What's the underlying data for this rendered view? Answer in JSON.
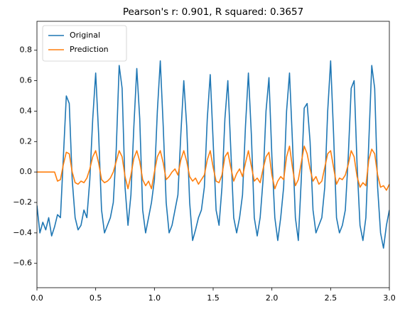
{
  "chart_data": {
    "type": "line",
    "title": "Pearson's r: 0.901, R squared: 0.3657",
    "x": [
      0,
      0.025,
      0.05,
      0.075,
      0.1,
      0.125,
      0.15,
      0.175,
      0.2,
      0.225,
      0.25,
      0.275,
      0.3,
      0.325,
      0.35,
      0.375,
      0.4,
      0.425,
      0.45,
      0.475,
      0.5,
      0.525,
      0.55,
      0.575,
      0.6,
      0.625,
      0.65,
      0.675,
      0.7,
      0.725,
      0.75,
      0.775,
      0.8,
      0.825,
      0.85,
      0.875,
      0.9,
      0.925,
      0.95,
      0.975,
      1.0,
      1.025,
      1.05,
      1.075,
      1.1,
      1.125,
      1.15,
      1.175,
      1.2,
      1.225,
      1.25,
      1.275,
      1.3,
      1.325,
      1.35,
      1.375,
      1.4,
      1.425,
      1.45,
      1.475,
      1.5,
      1.525,
      1.55,
      1.575,
      1.6,
      1.625,
      1.65,
      1.675,
      1.7,
      1.725,
      1.75,
      1.775,
      1.8,
      1.825,
      1.85,
      1.875,
      1.9,
      1.925,
      1.95,
      1.975,
      2.0,
      2.025,
      2.05,
      2.075,
      2.1,
      2.125,
      2.15,
      2.175,
      2.2,
      2.225,
      2.25,
      2.275,
      2.3,
      2.325,
      2.35,
      2.375,
      2.4,
      2.425,
      2.45,
      2.475,
      2.5,
      2.525,
      2.55,
      2.575,
      2.6,
      2.625,
      2.65,
      2.675,
      2.7,
      2.725,
      2.75,
      2.775,
      2.8,
      2.825,
      2.85,
      2.875,
      2.9,
      2.925,
      2.95,
      2.975,
      3.0
    ],
    "series": [
      {
        "name": "Original",
        "color": "#1f77b4",
        "values": [
          -0.22,
          -0.4,
          -0.33,
          -0.38,
          -0.3,
          -0.42,
          -0.36,
          -0.28,
          -0.3,
          0.1,
          0.5,
          0.45,
          -0.05,
          -0.3,
          -0.38,
          -0.35,
          -0.25,
          -0.3,
          -0.05,
          0.35,
          0.65,
          0.25,
          -0.25,
          -0.4,
          -0.35,
          -0.3,
          -0.2,
          0.15,
          0.7,
          0.55,
          -0.1,
          -0.35,
          -0.15,
          0.3,
          0.68,
          0.35,
          -0.25,
          -0.4,
          -0.3,
          -0.2,
          -0.05,
          0.4,
          0.73,
          0.3,
          -0.2,
          -0.4,
          -0.35,
          -0.25,
          -0.15,
          0.25,
          0.6,
          0.3,
          -0.2,
          -0.45,
          -0.38,
          -0.3,
          -0.25,
          -0.1,
          0.35,
          0.64,
          0.2,
          -0.25,
          -0.35,
          -0.1,
          0.35,
          0.6,
          0.15,
          -0.3,
          -0.4,
          -0.3,
          -0.15,
          0.3,
          0.65,
          0.25,
          -0.3,
          -0.42,
          -0.3,
          -0.05,
          0.4,
          0.62,
          0.1,
          -0.3,
          -0.45,
          -0.3,
          -0.1,
          0.4,
          0.65,
          0.2,
          -0.3,
          -0.45,
          -0.05,
          0.42,
          0.45,
          0.2,
          -0.25,
          -0.4,
          -0.35,
          -0.3,
          -0.1,
          0.4,
          0.73,
          0.25,
          -0.3,
          -0.4,
          -0.35,
          -0.25,
          0.1,
          0.55,
          0.6,
          0.05,
          -0.35,
          -0.45,
          -0.3,
          0.2,
          0.7,
          0.55,
          -0.1,
          -0.4,
          -0.5,
          -0.35,
          -0.25
        ]
      },
      {
        "name": "Prediction",
        "color": "#ff7f0e",
        "values": [
          0,
          0,
          0,
          0,
          0,
          0,
          0,
          -0.06,
          -0.05,
          0.05,
          0.13,
          0.12,
          0.0,
          -0.07,
          -0.08,
          -0.06,
          -0.07,
          -0.04,
          0.02,
          0.1,
          0.14,
          0.06,
          -0.05,
          -0.07,
          -0.06,
          -0.04,
          0.0,
          0.07,
          0.14,
          0.1,
          -0.03,
          -0.11,
          -0.02,
          0.09,
          0.14,
          0.07,
          -0.05,
          -0.09,
          -0.06,
          -0.11,
          0.0,
          0.1,
          0.14,
          0.06,
          -0.05,
          -0.03,
          0.0,
          0.02,
          -0.02,
          0.08,
          0.14,
          0.07,
          -0.03,
          -0.06,
          -0.04,
          -0.08,
          -0.05,
          -0.02,
          0.08,
          0.14,
          0.03,
          -0.06,
          -0.07,
          -0.02,
          0.1,
          0.13,
          0.03,
          -0.06,
          -0.01,
          0.02,
          -0.03,
          0.06,
          0.14,
          0.04,
          -0.06,
          -0.04,
          -0.07,
          0.02,
          0.1,
          0.13,
          -0.02,
          -0.11,
          -0.06,
          -0.03,
          -0.05,
          0.1,
          0.17,
          0.03,
          -0.09,
          -0.05,
          0.06,
          0.17,
          0.12,
          0.02,
          -0.06,
          -0.03,
          -0.08,
          -0.06,
          0.03,
          0.12,
          0.14,
          0.03,
          -0.08,
          -0.04,
          -0.05,
          -0.02,
          0.05,
          0.14,
          0.1,
          -0.03,
          -0.1,
          -0.07,
          -0.09,
          0.08,
          0.15,
          0.12,
          -0.02,
          -0.1,
          -0.09,
          -0.12,
          -0.08
        ]
      }
    ],
    "xlim": [
      0,
      3
    ],
    "xticks": [
      {
        "value": 0,
        "label": "0.0"
      },
      {
        "value": 0.5,
        "label": "0.5"
      },
      {
        "value": 1,
        "label": "1.0"
      },
      {
        "value": 1.5,
        "label": "1.5"
      },
      {
        "value": 2,
        "label": "2.0"
      },
      {
        "value": 2.5,
        "label": "2.5"
      },
      {
        "value": 3,
        "label": "3.0"
      }
    ],
    "ylim": [
      -0.76,
      0.99
    ],
    "yticks": [
      {
        "value": -0.6,
        "label": "−0.6"
      },
      {
        "value": -0.4,
        "label": "−0.4"
      },
      {
        "value": -0.2,
        "label": "−0.2"
      },
      {
        "value": 0,
        "label": "0.0"
      },
      {
        "value": 0.2,
        "label": "0.2"
      },
      {
        "value": 0.4,
        "label": "0.4"
      },
      {
        "value": 0.6,
        "label": "0.6"
      },
      {
        "value": 0.8,
        "label": "0.8"
      }
    ],
    "legend": "upper left",
    "grid": false
  }
}
